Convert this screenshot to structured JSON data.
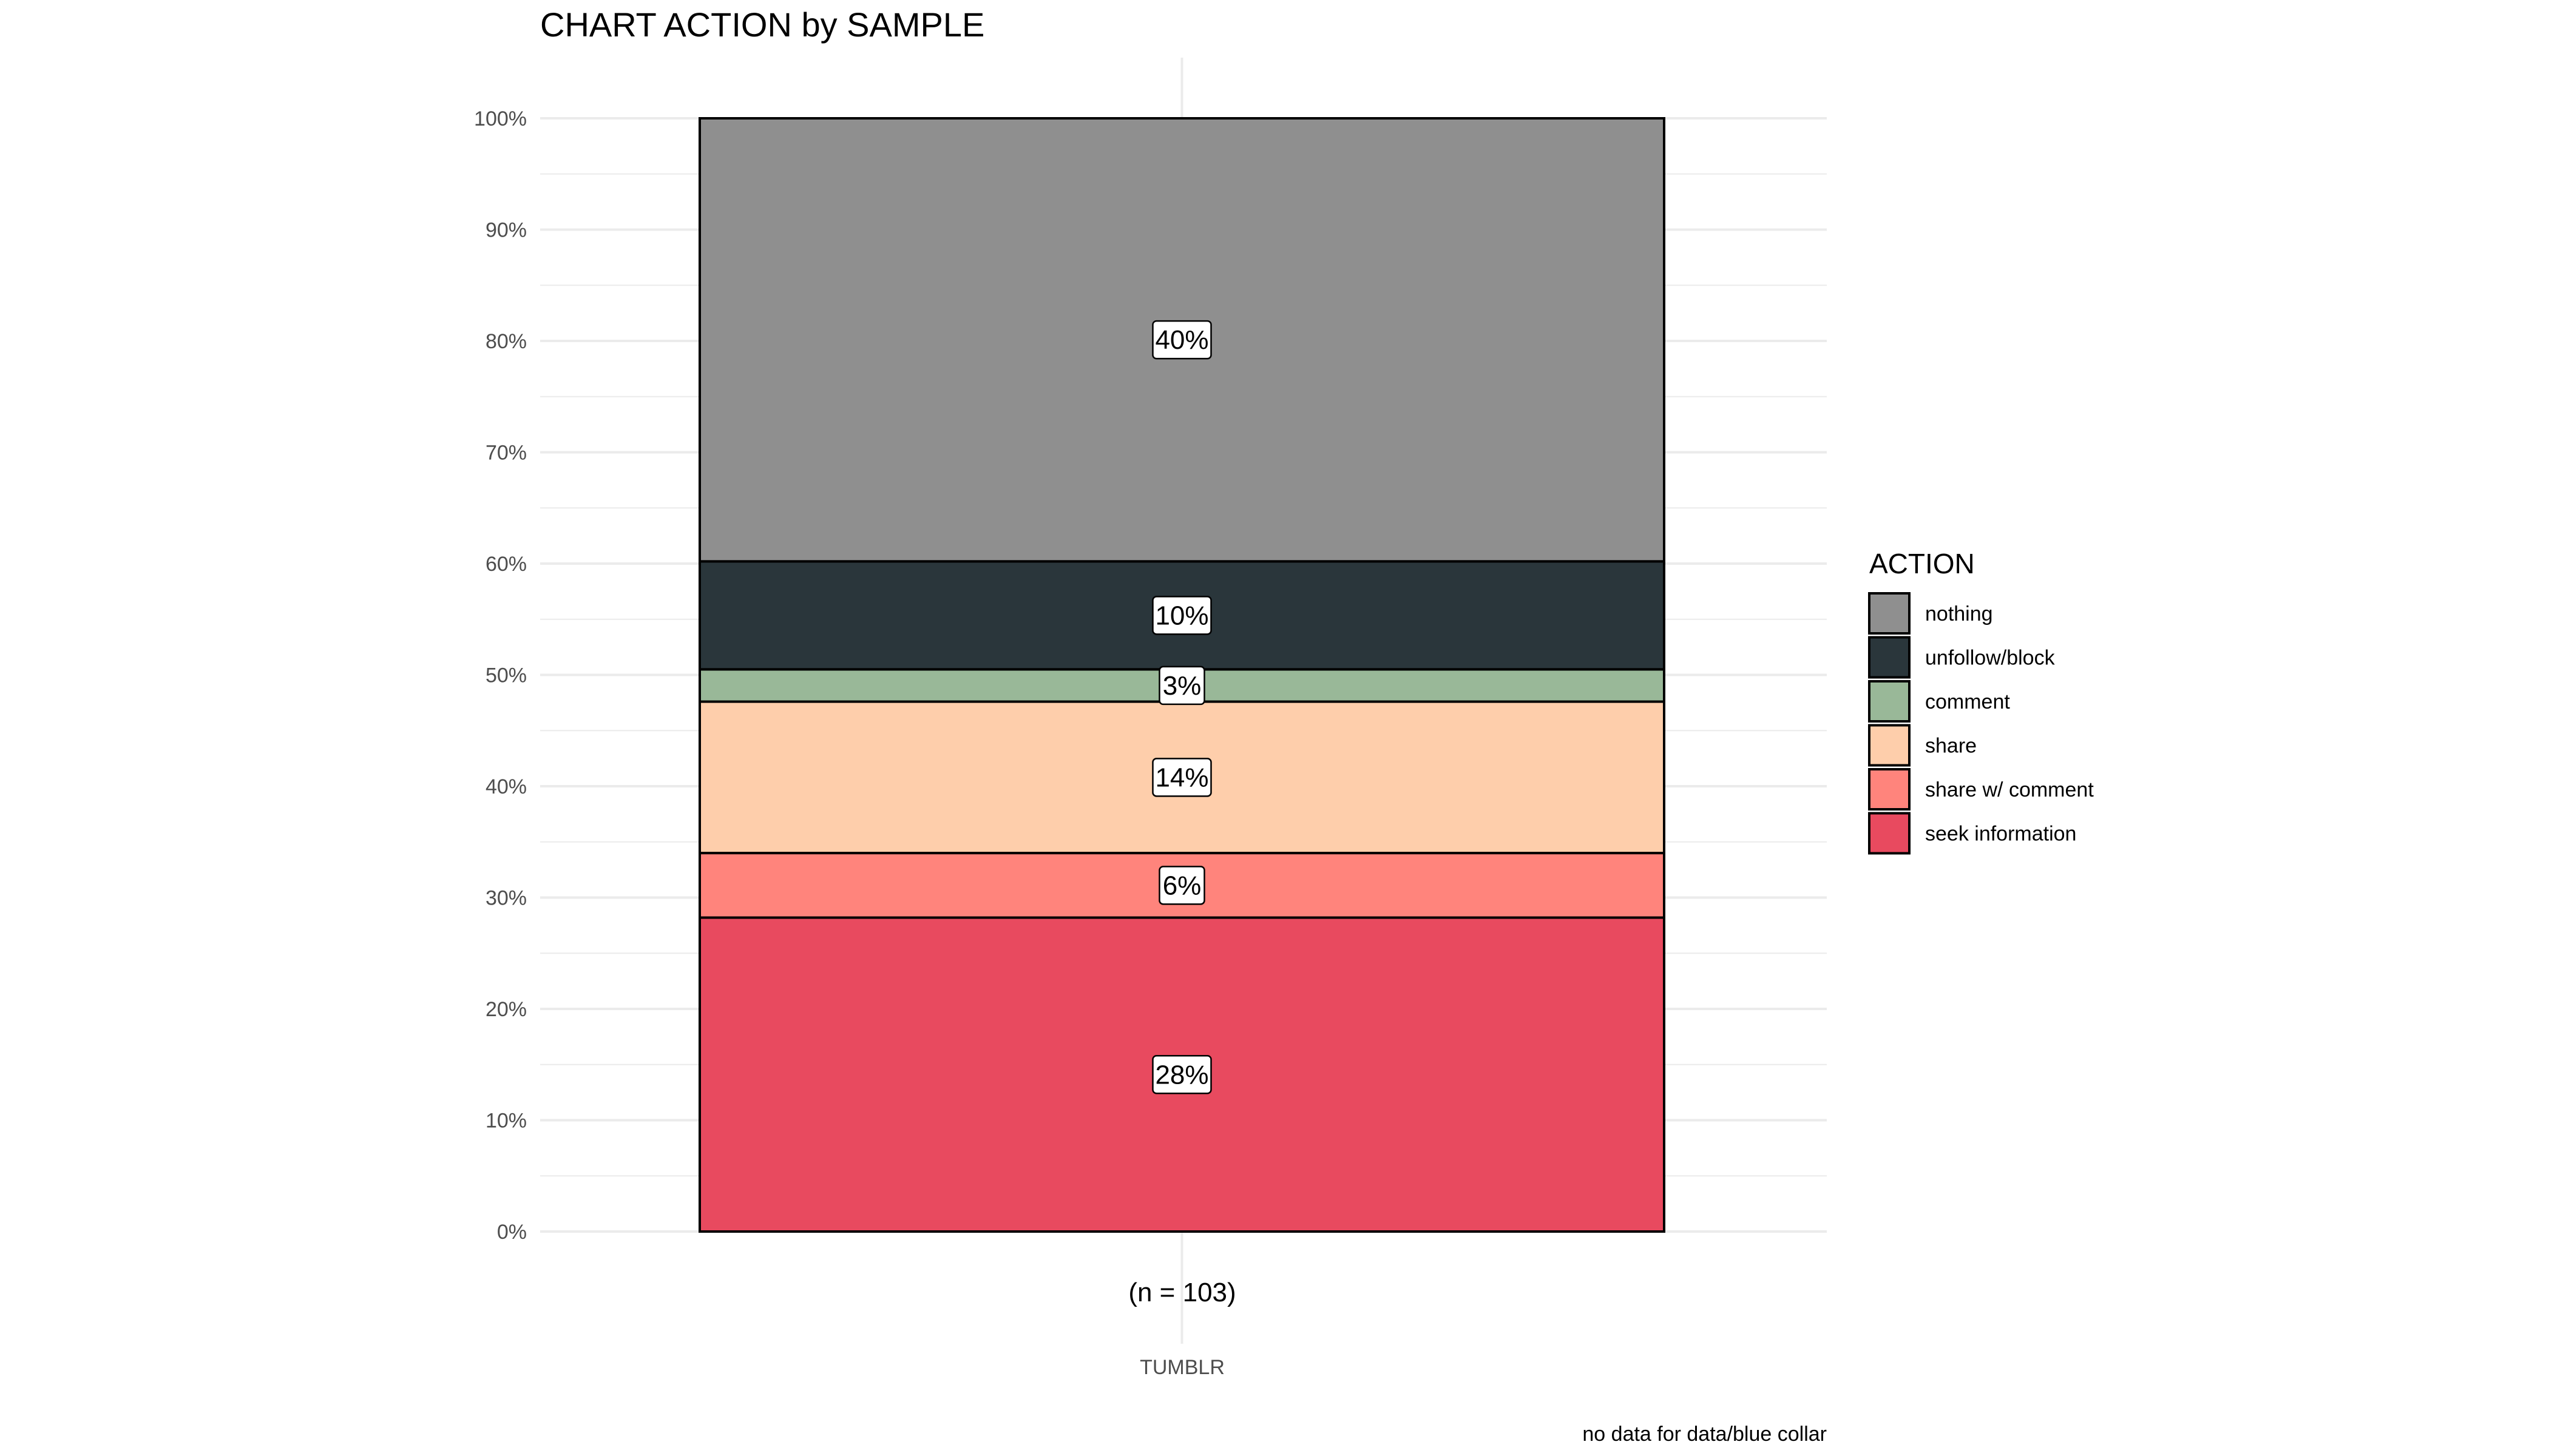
{
  "chart_data": {
    "type": "bar",
    "stacked": true,
    "title": "CHART ACTION by SAMPLE",
    "categories": [
      "TUMBLR"
    ],
    "sample_size_label": "(n = 103)",
    "y_axis": {
      "ylim": [
        0,
        100
      ],
      "tick_labels": [
        "0%",
        "10%",
        "20%",
        "30%",
        "40%",
        "50%",
        "60%",
        "70%",
        "80%",
        "90%",
        "100%"
      ],
      "grid": true
    },
    "legend": {
      "title": "ACTION",
      "placement": "right",
      "entries": [
        "nothing",
        "unfollow/block",
        "comment",
        "share",
        "share w/ comment",
        "seek information"
      ]
    },
    "series": [
      {
        "name": "seek information",
        "values": [
          28.2
        ],
        "label": "28%",
        "color": "#E84A5F"
      },
      {
        "name": "share w/ comment",
        "values": [
          5.8
        ],
        "label": "6%",
        "color": "#FF847C"
      },
      {
        "name": "share",
        "values": [
          13.6
        ],
        "label": "14%",
        "color": "#FECEAB"
      },
      {
        "name": "comment",
        "values": [
          2.9
        ],
        "label": "3%",
        "color": "#99B898"
      },
      {
        "name": "unfollow/block",
        "values": [
          9.7
        ],
        "label": "10%",
        "color": "#2A363B"
      },
      {
        "name": "nothing",
        "values": [
          39.8
        ],
        "label": "40%",
        "color": "#8F8F8F"
      }
    ],
    "caption": "no data for data/blue collar"
  }
}
